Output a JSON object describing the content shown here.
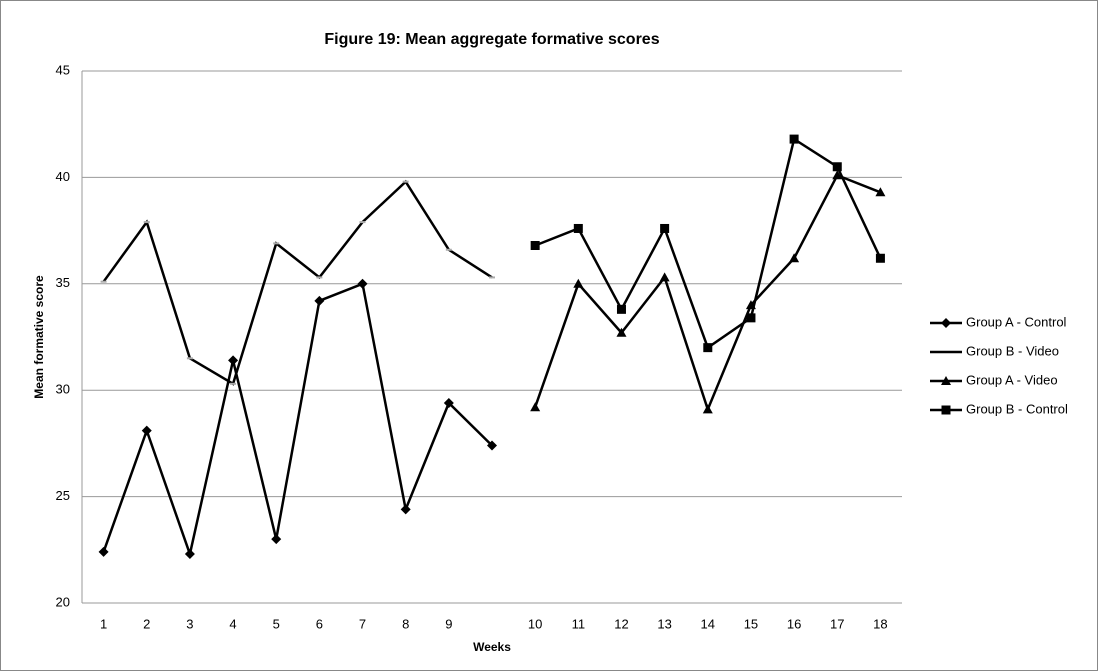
{
  "chart_data": {
    "type": "line",
    "title": "Figure 19: Mean aggregate formative scores",
    "x_label": "Weeks",
    "y_label": "Mean formative score",
    "categories": [
      "1",
      "2",
      "3",
      "4",
      "5",
      "6",
      "7",
      "8",
      "9",
      null,
      "10",
      "11",
      "12",
      "13",
      "14",
      "15",
      "16",
      "17",
      "18"
    ],
    "series": [
      {
        "name": "Group A - Control",
        "color": "#000000",
        "marker": "diamond",
        "values": [
          22.4,
          28.1,
          22.3,
          31.4,
          23.0,
          34.2,
          35.0,
          24.4,
          29.4,
          27.4,
          null,
          null,
          null,
          null,
          null,
          null,
          null,
          null,
          null
        ]
      },
      {
        "name": "Group B - Video",
        "color": "#000000",
        "marker": "none",
        "values": [
          35.1,
          37.9,
          31.5,
          30.3,
          36.9,
          35.3,
          37.9,
          39.8,
          36.6,
          35.3,
          null,
          null,
          null,
          null,
          null,
          null,
          null,
          null,
          null
        ]
      },
      {
        "name": "Group A - Video",
        "color": "#000000",
        "marker": "triangle",
        "values": [
          null,
          null,
          null,
          null,
          null,
          null,
          null,
          null,
          null,
          null,
          29.2,
          35.0,
          32.7,
          35.3,
          29.1,
          34.0,
          36.2,
          40.1,
          39.3
        ]
      },
      {
        "name": "Group B - Control",
        "color": "#000000",
        "marker": "square",
        "values": [
          null,
          null,
          null,
          null,
          null,
          null,
          null,
          null,
          null,
          null,
          36.8,
          37.6,
          33.8,
          37.6,
          32.0,
          33.4,
          41.8,
          40.5,
          36.2
        ]
      }
    ],
    "ylim": [
      20,
      45
    ],
    "yticks": [
      20,
      25,
      30,
      35,
      40,
      45
    ],
    "grid": true,
    "legend": "right"
  }
}
